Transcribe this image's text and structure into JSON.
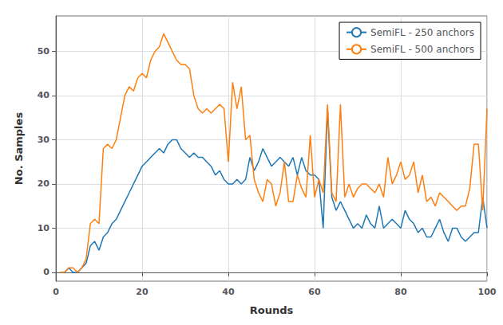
{
  "chart_data": {
    "type": "line",
    "title": "",
    "xlabel": "Rounds",
    "ylabel": "No. Samples",
    "x": [
      1,
      2,
      3,
      4,
      5,
      6,
      7,
      8,
      9,
      10,
      11,
      12,
      13,
      14,
      15,
      16,
      17,
      18,
      19,
      20,
      21,
      22,
      23,
      24,
      25,
      26,
      27,
      28,
      29,
      30,
      31,
      32,
      33,
      34,
      35,
      36,
      37,
      38,
      39,
      40,
      41,
      42,
      43,
      44,
      45,
      46,
      47,
      48,
      49,
      50,
      51,
      52,
      53,
      54,
      55,
      56,
      57,
      58,
      59,
      60,
      61,
      62,
      63,
      64,
      65,
      66,
      67,
      68,
      69,
      70,
      71,
      72,
      73,
      74,
      75,
      76,
      77,
      78,
      79,
      80,
      81,
      82,
      83,
      84,
      85,
      86,
      87,
      88,
      89,
      90,
      91,
      92,
      93,
      94,
      95,
      96,
      97,
      98,
      99,
      100
    ],
    "series": [
      {
        "name": "SemiFL - 250 anchors",
        "color": "#1f77b4",
        "values": [
          0,
          0,
          1,
          0,
          0,
          1,
          2,
          6,
          7,
          5,
          8,
          9,
          11,
          12,
          14,
          16,
          18,
          20,
          22,
          24,
          25,
          26,
          27,
          28,
          27,
          29,
          30,
          30,
          28,
          27,
          26,
          27,
          26,
          26,
          25,
          24,
          22,
          23,
          21,
          20,
          20,
          21,
          20,
          21,
          26,
          23,
          25,
          28,
          26,
          24,
          25,
          26,
          25,
          24,
          26,
          22,
          26,
          23,
          22,
          22,
          21,
          10,
          37,
          17,
          14,
          16,
          14,
          12,
          10,
          11,
          10,
          13,
          11,
          10,
          15,
          10,
          11,
          12,
          11,
          10,
          14,
          12,
          11,
          9,
          10,
          8,
          8,
          10,
          12,
          9,
          7,
          10,
          10,
          8,
          7,
          8,
          9,
          9,
          17,
          10
        ]
      },
      {
        "name": "SemiFL - 500 anchors",
        "color": "#ff7f0e",
        "values": [
          0,
          0,
          1,
          1,
          0,
          1,
          3,
          11,
          12,
          11,
          28,
          29,
          28,
          30,
          35,
          40,
          42,
          41,
          44,
          45,
          44,
          48,
          50,
          51,
          54,
          52,
          50,
          48,
          47,
          47,
          46,
          40,
          37,
          36,
          37,
          36,
          37,
          38,
          37,
          25,
          43,
          37,
          42,
          30,
          31,
          21,
          18,
          16,
          21,
          20,
          15,
          18,
          25,
          16,
          16,
          22,
          19,
          17,
          31,
          17,
          21,
          18,
          38,
          18,
          16,
          38,
          17,
          20,
          17,
          19,
          20,
          20,
          19,
          18,
          20,
          17,
          26,
          20,
          22,
          25,
          21,
          22,
          25,
          18,
          22,
          16,
          17,
          15,
          18,
          17,
          16,
          15,
          14,
          15,
          15,
          19,
          29,
          29,
          14,
          37
        ]
      }
    ],
    "xlim": [
      0,
      100
    ],
    "ylim": [
      -2,
      58
    ],
    "xticks": [
      0,
      20,
      40,
      60,
      80,
      100
    ],
    "yticks": [
      0,
      10,
      20,
      30,
      40,
      50
    ],
    "grid": true,
    "legend": "upper right"
  }
}
